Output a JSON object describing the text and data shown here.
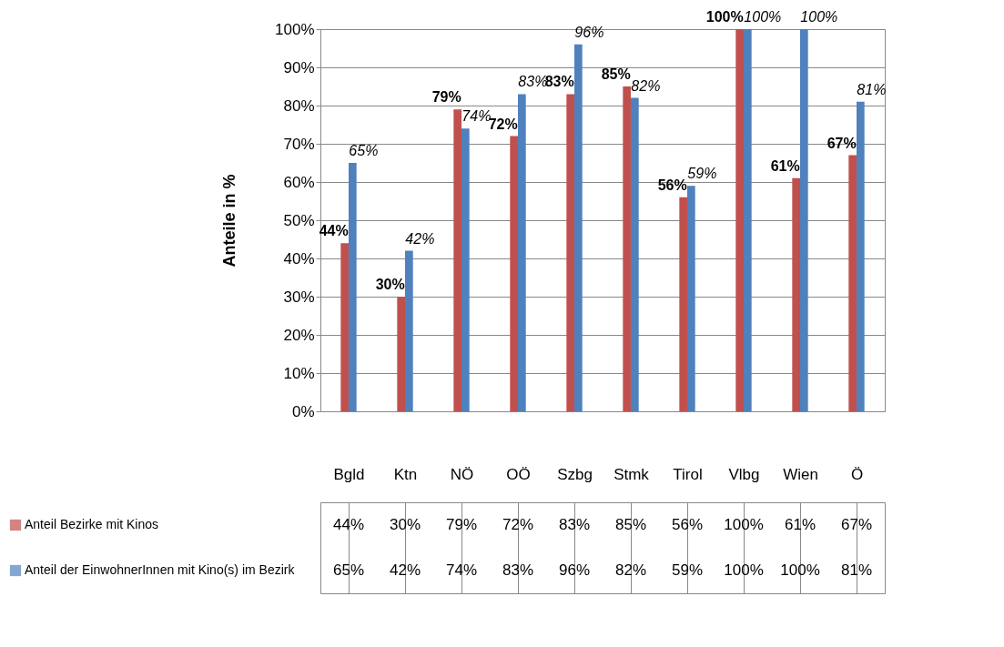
{
  "chart_data": {
    "type": "bar",
    "ylabel": "Anteile in %",
    "categories": [
      "Bgld",
      "Ktn",
      "NÖ",
      "OÖ",
      "Szbg",
      "Stmk",
      "Tirol",
      "Vlbg",
      "Wien",
      "Ö"
    ],
    "series": [
      {
        "name": "Anteil Bezirke mit Kinos",
        "color": "#c0504d",
        "values": [
          44,
          30,
          79,
          72,
          83,
          85,
          56,
          100,
          61,
          67
        ],
        "value_labels": [
          "44%",
          "30%",
          "79%",
          "72%",
          "83%",
          "85%",
          "56%",
          "100%",
          "61%",
          "67%"
        ]
      },
      {
        "name": "Anteil der EinwohnerInnen mit Kino(s) im Bezirk",
        "color": "#4f81bd",
        "values": [
          65,
          42,
          74,
          83,
          96,
          82,
          59,
          100,
          100,
          81
        ],
        "value_labels": [
          "65%",
          "42%",
          "74%",
          "83%",
          "96%",
          "82%",
          "59%",
          "100%",
          "100%",
          "81%"
        ]
      }
    ],
    "ylim": [
      0,
      100
    ],
    "yticks": [
      {
        "value": 0,
        "label": "0%"
      },
      {
        "value": 10,
        "label": "10%"
      },
      {
        "value": 20,
        "label": "20%"
      },
      {
        "value": 30,
        "label": "30%"
      },
      {
        "value": 40,
        "label": "40%"
      },
      {
        "value": 50,
        "label": "50%"
      },
      {
        "value": 60,
        "label": "60%"
      },
      {
        "value": 70,
        "label": "70%"
      },
      {
        "value": 80,
        "label": "80%"
      },
      {
        "value": 90,
        "label": "90%"
      },
      {
        "value": 100,
        "label": "100%"
      }
    ],
    "grid": "y",
    "legend": "bottom"
  }
}
